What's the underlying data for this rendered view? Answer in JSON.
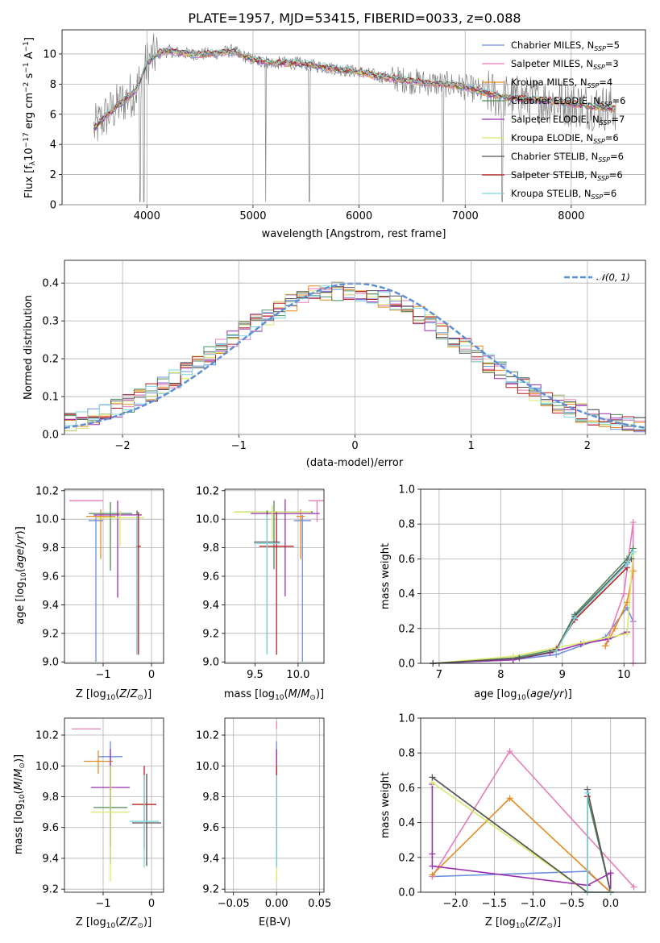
{
  "colors": {
    "Chabrier MILES": "#6e8fdc",
    "Salpeter MILES": "#e87cb8",
    "Kroupa MILES": "#e88a22",
    "Chabrier ELODIE": "#4f8a5c",
    "Salpeter ELODIE": "#9b2fb0",
    "Kroupa ELODIE": "#d8e86a",
    "Chabrier STELIB": "#555555",
    "Salpeter STELIB": "#b81e1e",
    "Kroupa STELIB": "#7fd6df",
    "gauss": "#5b8fd8"
  },
  "chart_data": [
    {
      "id": "spectrum",
      "type": "line",
      "title": "PLATE=1957, MJD=53415, FIBERID=0033, z=0.088",
      "xlabel": "wavelength [Angstrom, rest frame]",
      "ylabel": "Flux [f_λ10^-17 erg cm^-2 s^-1 A^-1]",
      "xlim": [
        3200,
        8700
      ],
      "ylim": [
        0,
        11.6
      ],
      "xticks": [
        "4000",
        "5000",
        "6000",
        "7000",
        "8000"
      ],
      "yticks": [
        "0",
        "2",
        "4",
        "6",
        "8",
        "10"
      ],
      "legend_position": "top-right",
      "legend": [
        {
          "model": "Chabrier MILES",
          "nssp": "5"
        },
        {
          "model": "Salpeter MILES",
          "nssp": "3"
        },
        {
          "model": "Kroupa MILES",
          "nssp": "4"
        },
        {
          "model": "Chabrier ELODIE",
          "nssp": "6"
        },
        {
          "model": "Salpeter ELODIE",
          "nssp": "7"
        },
        {
          "model": "Kroupa ELODIE",
          "nssp": "6"
        },
        {
          "model": "Chabrier STELIB",
          "nssp": "6"
        },
        {
          "model": "Salpeter STELIB",
          "nssp": "6"
        },
        {
          "model": "Kroupa STELIB",
          "nssp": "6"
        }
      ],
      "data_continuum": [
        [
          3500,
          5.0
        ],
        [
          3600,
          5.8
        ],
        [
          3700,
          6.4
        ],
        [
          3800,
          7.0
        ],
        [
          3900,
          7.6
        ],
        [
          4000,
          9.4
        ],
        [
          4100,
          10.0
        ],
        [
          4200,
          10.2
        ],
        [
          4400,
          10.0
        ],
        [
          4600,
          10.0
        ],
        [
          4800,
          10.2
        ],
        [
          5000,
          9.6
        ],
        [
          5200,
          9.4
        ],
        [
          5400,
          9.4
        ],
        [
          5600,
          9.2
        ],
        [
          5800,
          9.0
        ],
        [
          6000,
          8.8
        ],
        [
          6200,
          8.5
        ],
        [
          6400,
          8.3
        ],
        [
          6600,
          8.1
        ],
        [
          6800,
          8.0
        ],
        [
          7000,
          7.8
        ],
        [
          7200,
          7.4
        ],
        [
          7400,
          7.1
        ],
        [
          7600,
          7.0
        ],
        [
          7800,
          6.9
        ],
        [
          8000,
          6.7
        ],
        [
          8200,
          6.5
        ],
        [
          8400,
          6.4
        ]
      ]
    },
    {
      "id": "residuals",
      "type": "line",
      "xlabel": "(data-model)/error",
      "ylabel": "Normed distribution",
      "xlim": [
        -2.5,
        2.5
      ],
      "ylim": [
        0,
        0.46
      ],
      "xticks": [
        "−2",
        "−1",
        "0",
        "1",
        "2"
      ],
      "yticks": [
        "0.0",
        "0.1",
        "0.2",
        "0.3",
        "0.4"
      ],
      "legend": "𝒩(0, 1)",
      "legend_position": "top-right"
    },
    {
      "id": "age-vs-Z",
      "type": "scatter",
      "xlabel": "Z [log10(Z/Z⊙)]",
      "ylabel": "age  [log10(age/yr)]",
      "xlim": [
        -1.8,
        0.25
      ],
      "ylim": [
        8.99,
        10.21
      ],
      "xticks": [
        "−1",
        "0"
      ],
      "yticks": [
        "9.0",
        "9.2",
        "9.4",
        "9.6",
        "9.8",
        "10.0",
        "10.2"
      ],
      "points": [
        {
          "model": "Chabrier MILES",
          "x": -1.15,
          "y": 9.99,
          "xerr": 0.15,
          "yerr_lo": 0.99,
          "yerr_hi": 0.04
        },
        {
          "model": "Salpeter MILES",
          "x": -1.35,
          "y": 10.13,
          "xerr": 0.35,
          "yerr_lo": 0.0,
          "yerr_hi": 0.0
        },
        {
          "model": "Kroupa MILES",
          "x": -1.05,
          "y": 10.02,
          "xerr": 0.3,
          "yerr_lo": 0.3,
          "yerr_hi": 0.05
        },
        {
          "model": "Chabrier ELODIE",
          "x": -0.85,
          "y": 10.04,
          "xerr": 0.45,
          "yerr_lo": 0.4,
          "yerr_hi": 0.08
        },
        {
          "model": "Salpeter ELODIE",
          "x": -0.7,
          "y": 10.03,
          "xerr": 0.5,
          "yerr_lo": 0.58,
          "yerr_hi": 0.1
        },
        {
          "model": "Kroupa ELODIE",
          "x": -0.65,
          "y": 10.01,
          "xerr": 0.5,
          "yerr_lo": 0.2,
          "yerr_hi": 0.05
        },
        {
          "model": "Chabrier STELIB",
          "x": -0.3,
          "y": 9.84,
          "xerr": 0.0,
          "yerr_lo": 0.78,
          "yerr_hi": 0.22
        },
        {
          "model": "Salpeter STELIB",
          "x": -0.27,
          "y": 9.81,
          "xerr": 0.05,
          "yerr_lo": 0.76,
          "yerr_hi": 0.24
        },
        {
          "model": "Kroupa STELIB",
          "x": -0.3,
          "y": 9.83,
          "xerr": 0.02,
          "yerr_lo": 0.78,
          "yerr_hi": 0.2
        }
      ]
    },
    {
      "id": "age-vs-mass",
      "type": "scatter",
      "xlabel": "mass [log10(M/M⊙)]",
      "ylabel": "",
      "xlim": [
        9.15,
        10.3
      ],
      "ylim": [
        8.99,
        10.21
      ],
      "xticks": [
        "9.5",
        "10.0"
      ],
      "yticks": [
        "9.0",
        "9.2",
        "9.4",
        "9.6",
        "9.8",
        "10.0",
        "10.2"
      ],
      "points": [
        {
          "model": "Chabrier MILES",
          "x": 10.05,
          "y": 9.99,
          "xerr": 0.1,
          "yerr_lo": 0.99,
          "yerr_hi": 0.04
        },
        {
          "model": "Salpeter MILES",
          "x": 10.22,
          "y": 10.13,
          "xerr": 0.1,
          "yerr_lo": 0.15,
          "yerr_hi": 0.0
        },
        {
          "model": "Kroupa MILES",
          "x": 10.03,
          "y": 10.02,
          "xerr": 0.05,
          "yerr_lo": 0.3,
          "yerr_hi": 0.05
        },
        {
          "model": "Chabrier ELODIE",
          "x": 9.72,
          "y": 10.05,
          "xerr": 0.45,
          "yerr_lo": 0.4,
          "yerr_hi": 0.08
        },
        {
          "model": "Salpeter ELODIE",
          "x": 9.85,
          "y": 10.04,
          "xerr": 0.4,
          "yerr_lo": 0.58,
          "yerr_hi": 0.1
        },
        {
          "model": "Kroupa ELODIE",
          "x": 9.7,
          "y": 10.05,
          "xerr": 0.45,
          "yerr_lo": 0.2,
          "yerr_hi": 0.05
        },
        {
          "model": "Chabrier STELIB",
          "x": 9.64,
          "y": 9.84,
          "xerr": 0.15,
          "yerr_lo": 0.78,
          "yerr_hi": 0.22
        },
        {
          "model": "Salpeter STELIB",
          "x": 9.75,
          "y": 9.81,
          "xerr": 0.2,
          "yerr_lo": 0.76,
          "yerr_hi": 0.24
        },
        {
          "model": "Kroupa STELIB",
          "x": 9.64,
          "y": 9.83,
          "xerr": 0.15,
          "yerr_lo": 0.78,
          "yerr_hi": 0.2
        }
      ]
    },
    {
      "id": "weight-vs-age",
      "type": "line",
      "xlabel": "age  [log10(age/yr)]",
      "ylabel": "mass weight",
      "xlim": [
        6.7,
        10.35
      ],
      "ylim": [
        0,
        1.0
      ],
      "xticks": [
        "7",
        "8",
        "9",
        "10"
      ],
      "yticks": [
        "0.0",
        "0.2",
        "0.4",
        "0.6",
        "0.8",
        "1.0"
      ],
      "series": [
        {
          "model": "Chabrier MILES",
          "x": [
            6.9,
            8.2,
            8.9,
            9.7,
            10.05,
            10.15
          ],
          "y": [
            0.0,
            0.02,
            0.05,
            0.15,
            0.32,
            0.24
          ]
        },
        {
          "model": "Salpeter MILES",
          "x": [
            9.7,
            10.0,
            10.15,
            10.15
          ],
          "y": [
            0.1,
            0.4,
            0.81,
            0.0
          ]
        },
        {
          "model": "Kroupa MILES",
          "x": [
            9.7,
            9.85,
            10.05,
            10.15
          ],
          "y": [
            0.1,
            0.2,
            0.35,
            0.53
          ]
        },
        {
          "model": "Chabrier ELODIE",
          "x": [
            6.9,
            8.2,
            8.9,
            9.2,
            10.05,
            10.15
          ],
          "y": [
            0.0,
            0.03,
            0.08,
            0.28,
            0.6,
            0.66
          ]
        },
        {
          "model": "Salpeter ELODIE",
          "x": [
            6.9,
            8.2,
            8.8,
            9.3,
            9.75,
            10.05
          ],
          "y": [
            0.0,
            0.02,
            0.06,
            0.11,
            0.14,
            0.18
          ]
        },
        {
          "model": "Kroupa ELODIE",
          "x": [
            6.9,
            8.2,
            8.9,
            9.35,
            9.75,
            10.05,
            10.15
          ],
          "y": [
            0.0,
            0.04,
            0.09,
            0.12,
            0.15,
            0.17,
            0.63
          ]
        },
        {
          "model": "Chabrier STELIB",
          "x": [
            6.9,
            8.3,
            8.9,
            9.2,
            10.05,
            10.12
          ],
          "y": [
            0.0,
            0.03,
            0.07,
            0.27,
            0.58,
            0.6
          ]
        },
        {
          "model": "Salpeter STELIB",
          "x": [
            8.9,
            9.2,
            10.05
          ],
          "y": [
            0.08,
            0.25,
            0.55
          ]
        },
        {
          "model": "Kroupa STELIB",
          "x": [
            8.9,
            9.2,
            10.05,
            10.15
          ],
          "y": [
            0.07,
            0.26,
            0.57,
            0.64
          ]
        }
      ]
    },
    {
      "id": "mass-vs-Z",
      "type": "scatter",
      "xlabel": "Z [log10(Z/Z⊙)]",
      "ylabel": "mass [log10(M/M⊙)]",
      "xlim": [
        -1.8,
        0.25
      ],
      "ylim": [
        9.18,
        10.31
      ],
      "xticks": [
        "−1",
        "0"
      ],
      "yticks": [
        "9.2",
        "9.4",
        "9.6",
        "9.8",
        "10.0",
        "10.2"
      ],
      "points": [
        {
          "model": "Chabrier MILES",
          "x": -0.85,
          "y": 10.06,
          "xerr": 0.25,
          "yerr_lo": 0.35,
          "yerr_hi": 0.1
        },
        {
          "model": "Salpeter MILES",
          "x": -1.35,
          "y": 10.24,
          "xerr": 0.3,
          "yerr_lo": 0.0,
          "yerr_hi": 0.0
        },
        {
          "model": "Kroupa MILES",
          "x": -1.1,
          "y": 10.03,
          "xerr": 0.3,
          "yerr_lo": 0.08,
          "yerr_hi": 0.07
        },
        {
          "model": "Chabrier ELODIE",
          "x": -0.85,
          "y": 9.73,
          "xerr": 0.35,
          "yerr_lo": 0.25,
          "yerr_hi": 0.27
        },
        {
          "model": "Salpeter ELODIE",
          "x": -0.85,
          "y": 9.86,
          "xerr": 0.4,
          "yerr_lo": 0.5,
          "yerr_hi": 0.25
        },
        {
          "model": "Kroupa ELODIE",
          "x": -0.85,
          "y": 9.7,
          "xerr": 0.4,
          "yerr_lo": 0.45,
          "yerr_hi": 0.3
        },
        {
          "model": "Chabrier STELIB",
          "x": -0.1,
          "y": 9.63,
          "xerr": 0.3,
          "yerr_lo": 0.28,
          "yerr_hi": 0.32
        },
        {
          "model": "Salpeter STELIB",
          "x": -0.15,
          "y": 9.75,
          "xerr": 0.25,
          "yerr_lo": 0.28,
          "yerr_hi": 0.25
        },
        {
          "model": "Kroupa STELIB",
          "x": -0.15,
          "y": 9.64,
          "xerr": 0.3,
          "yerr_lo": 0.3,
          "yerr_hi": 0.3
        }
      ]
    },
    {
      "id": "mass-vs-EBV",
      "type": "scatter",
      "xlabel": "E(B-V)",
      "ylabel": "",
      "xlim": [
        -0.06,
        0.055
      ],
      "ylim": [
        9.18,
        10.31
      ],
      "xticks": [
        "−0.05",
        "0.00",
        "0.05"
      ],
      "yticks": [
        "9.2",
        "9.4",
        "9.6",
        "9.8",
        "10.0",
        "10.2"
      ],
      "points": [
        {
          "model": "Chabrier MILES",
          "x": 0.0,
          "y": 10.06,
          "xerr": 0.0,
          "yerr_lo": 0.35,
          "yerr_hi": 0.1
        },
        {
          "model": "Salpeter MILES",
          "x": 0.0,
          "y": 10.24,
          "xerr": 0.0,
          "yerr_lo": 0.0,
          "yerr_hi": 0.05
        },
        {
          "model": "Kroupa MILES",
          "x": 0.0,
          "y": 10.03,
          "xerr": 0.0,
          "yerr_lo": 0.08,
          "yerr_hi": 0.07
        },
        {
          "model": "Chabrier ELODIE",
          "x": 0.0,
          "y": 9.73,
          "xerr": 0.0,
          "yerr_lo": 0.25,
          "yerr_hi": 0.27
        },
        {
          "model": "Salpeter ELODIE",
          "x": 0.0,
          "y": 9.86,
          "xerr": 0.0,
          "yerr_lo": 0.5,
          "yerr_hi": 0.25
        },
        {
          "model": "Kroupa ELODIE",
          "x": 0.0,
          "y": 9.7,
          "xerr": 0.0,
          "yerr_lo": 0.45,
          "yerr_hi": 0.3
        },
        {
          "model": "Chabrier STELIB",
          "x": 0.0,
          "y": 9.63,
          "xerr": 0.0,
          "yerr_lo": 0.28,
          "yerr_hi": 0.32
        },
        {
          "model": "Salpeter STELIB",
          "x": 0.0,
          "y": 9.75,
          "xerr": 0.0,
          "yerr_lo": 0.28,
          "yerr_hi": 0.25
        },
        {
          "model": "Kroupa STELIB",
          "x": 0.0,
          "y": 9.64,
          "xerr": 0.0,
          "yerr_lo": 0.3,
          "yerr_hi": 0.3
        }
      ]
    },
    {
      "id": "weight-vs-Z",
      "type": "line",
      "xlabel": "Z [log10(Z/Z⊙)]",
      "ylabel": "mass weight",
      "xlim": [
        -2.45,
        0.45
      ],
      "ylim": [
        0,
        1.0
      ],
      "xticks": [
        "−2.0",
        "−1.5",
        "−1.0",
        "−0.5",
        "0.0"
      ],
      "yticks": [
        "0.0",
        "0.2",
        "0.4",
        "0.6",
        "0.8",
        "1.0"
      ],
      "series": [
        {
          "model": "Chabrier MILES",
          "x": [
            -2.3,
            -0.3,
            0.0
          ],
          "y": [
            0.09,
            0.12,
            0.0
          ]
        },
        {
          "model": "Salpeter MILES",
          "x": [
            -2.3,
            -1.3,
            0.3
          ],
          "y": [
            0.09,
            0.81,
            0.03
          ]
        },
        {
          "model": "Kroupa MILES",
          "x": [
            -2.3,
            -1.3,
            0.0
          ],
          "y": [
            0.1,
            0.54,
            0.0
          ]
        },
        {
          "model": "Chabrier ELODIE",
          "x": [
            -2.3,
            -0.3,
            -0.3,
            0.0
          ],
          "y": [
            0.66,
            0.0,
            0.55,
            0.0
          ]
        },
        {
          "model": "Salpeter ELODIE",
          "x": [
            -2.3,
            -2.3,
            -2.3,
            -0.3,
            0.0,
            0.0
          ],
          "y": [
            0.62,
            0.22,
            0.15,
            0.04,
            0.11,
            0.0
          ]
        },
        {
          "model": "Kroupa ELODIE",
          "x": [
            -2.3,
            -0.3,
            0.0
          ],
          "y": [
            0.63,
            0.0,
            0.0
          ]
        },
        {
          "model": "Chabrier STELIB",
          "x": [
            -2.3,
            -0.3,
            -0.3,
            0.0
          ],
          "y": [
            0.66,
            0.0,
            0.59,
            0.0
          ]
        },
        {
          "model": "Salpeter STELIB",
          "x": [
            -0.3,
            -0.3,
            0.0
          ],
          "y": [
            0.55,
            0.0,
            0.0
          ]
        },
        {
          "model": "Kroupa STELIB",
          "x": [
            -0.3,
            -0.3,
            0.0
          ],
          "y": [
            0.57,
            0.0,
            0.0
          ]
        }
      ]
    }
  ]
}
